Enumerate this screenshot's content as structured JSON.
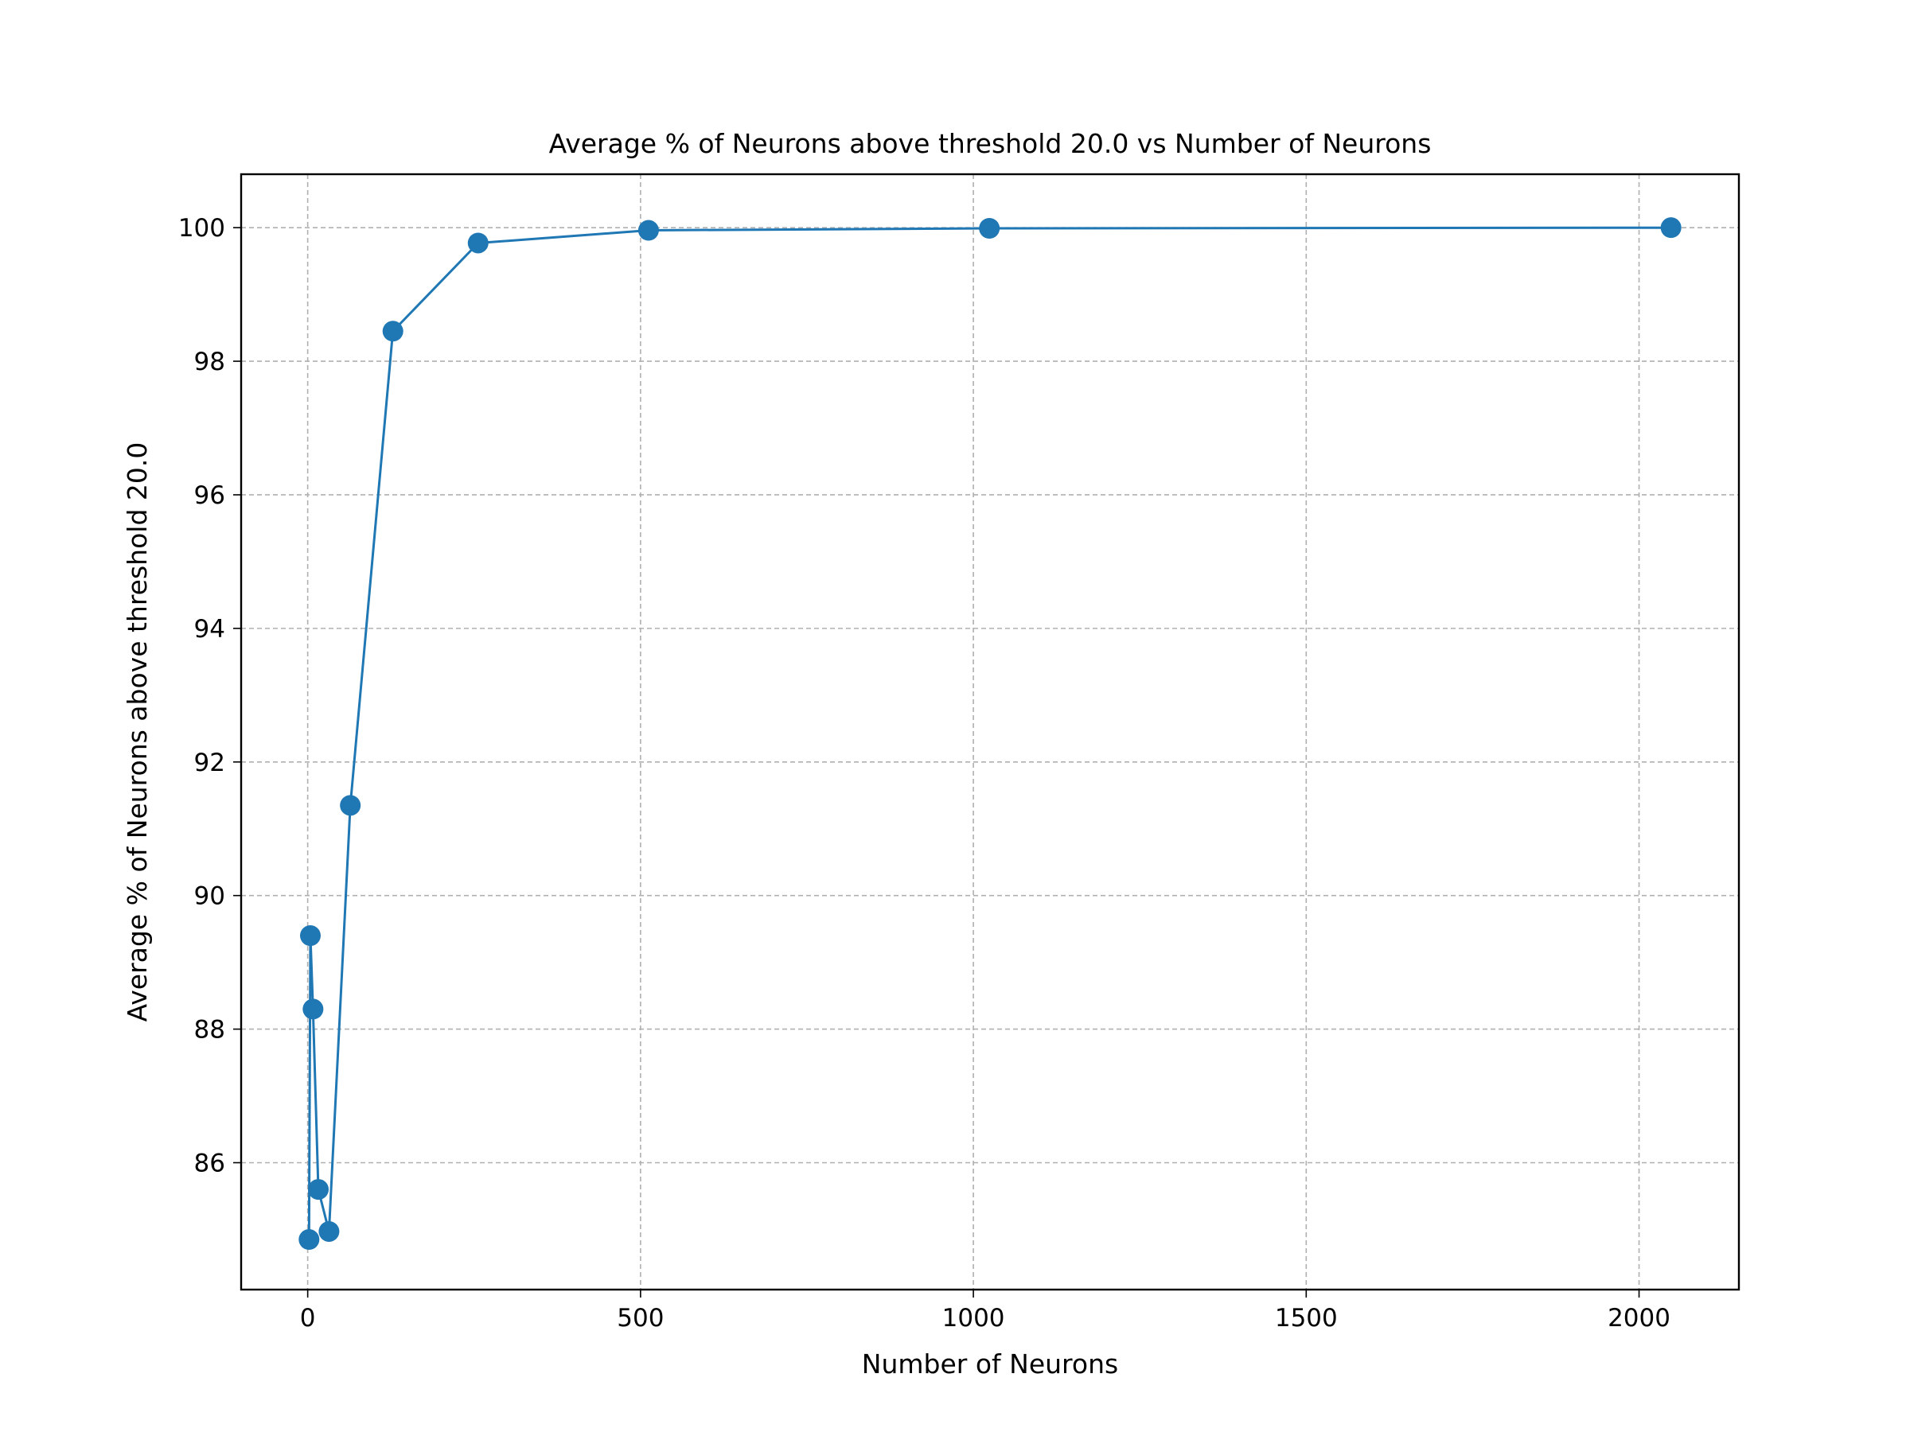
{
  "chart_data": {
    "type": "line",
    "title": "Average % of Neurons above threshold 20.0 vs Number of Neurons",
    "xlabel": "Number of Neurons",
    "ylabel": "Average % of Neurons above threshold 20.0",
    "xlim": [
      -100,
      2150
    ],
    "ylim": [
      84.1,
      100.8
    ],
    "xticks": [
      0,
      500,
      1000,
      1500,
      2000
    ],
    "yticks": [
      86,
      88,
      90,
      92,
      94,
      96,
      98,
      100
    ],
    "grid": true,
    "marker": "circle",
    "colors": {
      "series": "#1f77b4"
    },
    "series": [
      {
        "x": [
          2,
          4,
          8,
          16,
          32,
          64,
          128,
          256,
          512,
          1024,
          2048
        ],
        "y": [
          84.85,
          89.4,
          88.3,
          85.6,
          84.97,
          91.35,
          98.45,
          99.77,
          99.96,
          99.99,
          100.0
        ]
      }
    ]
  }
}
